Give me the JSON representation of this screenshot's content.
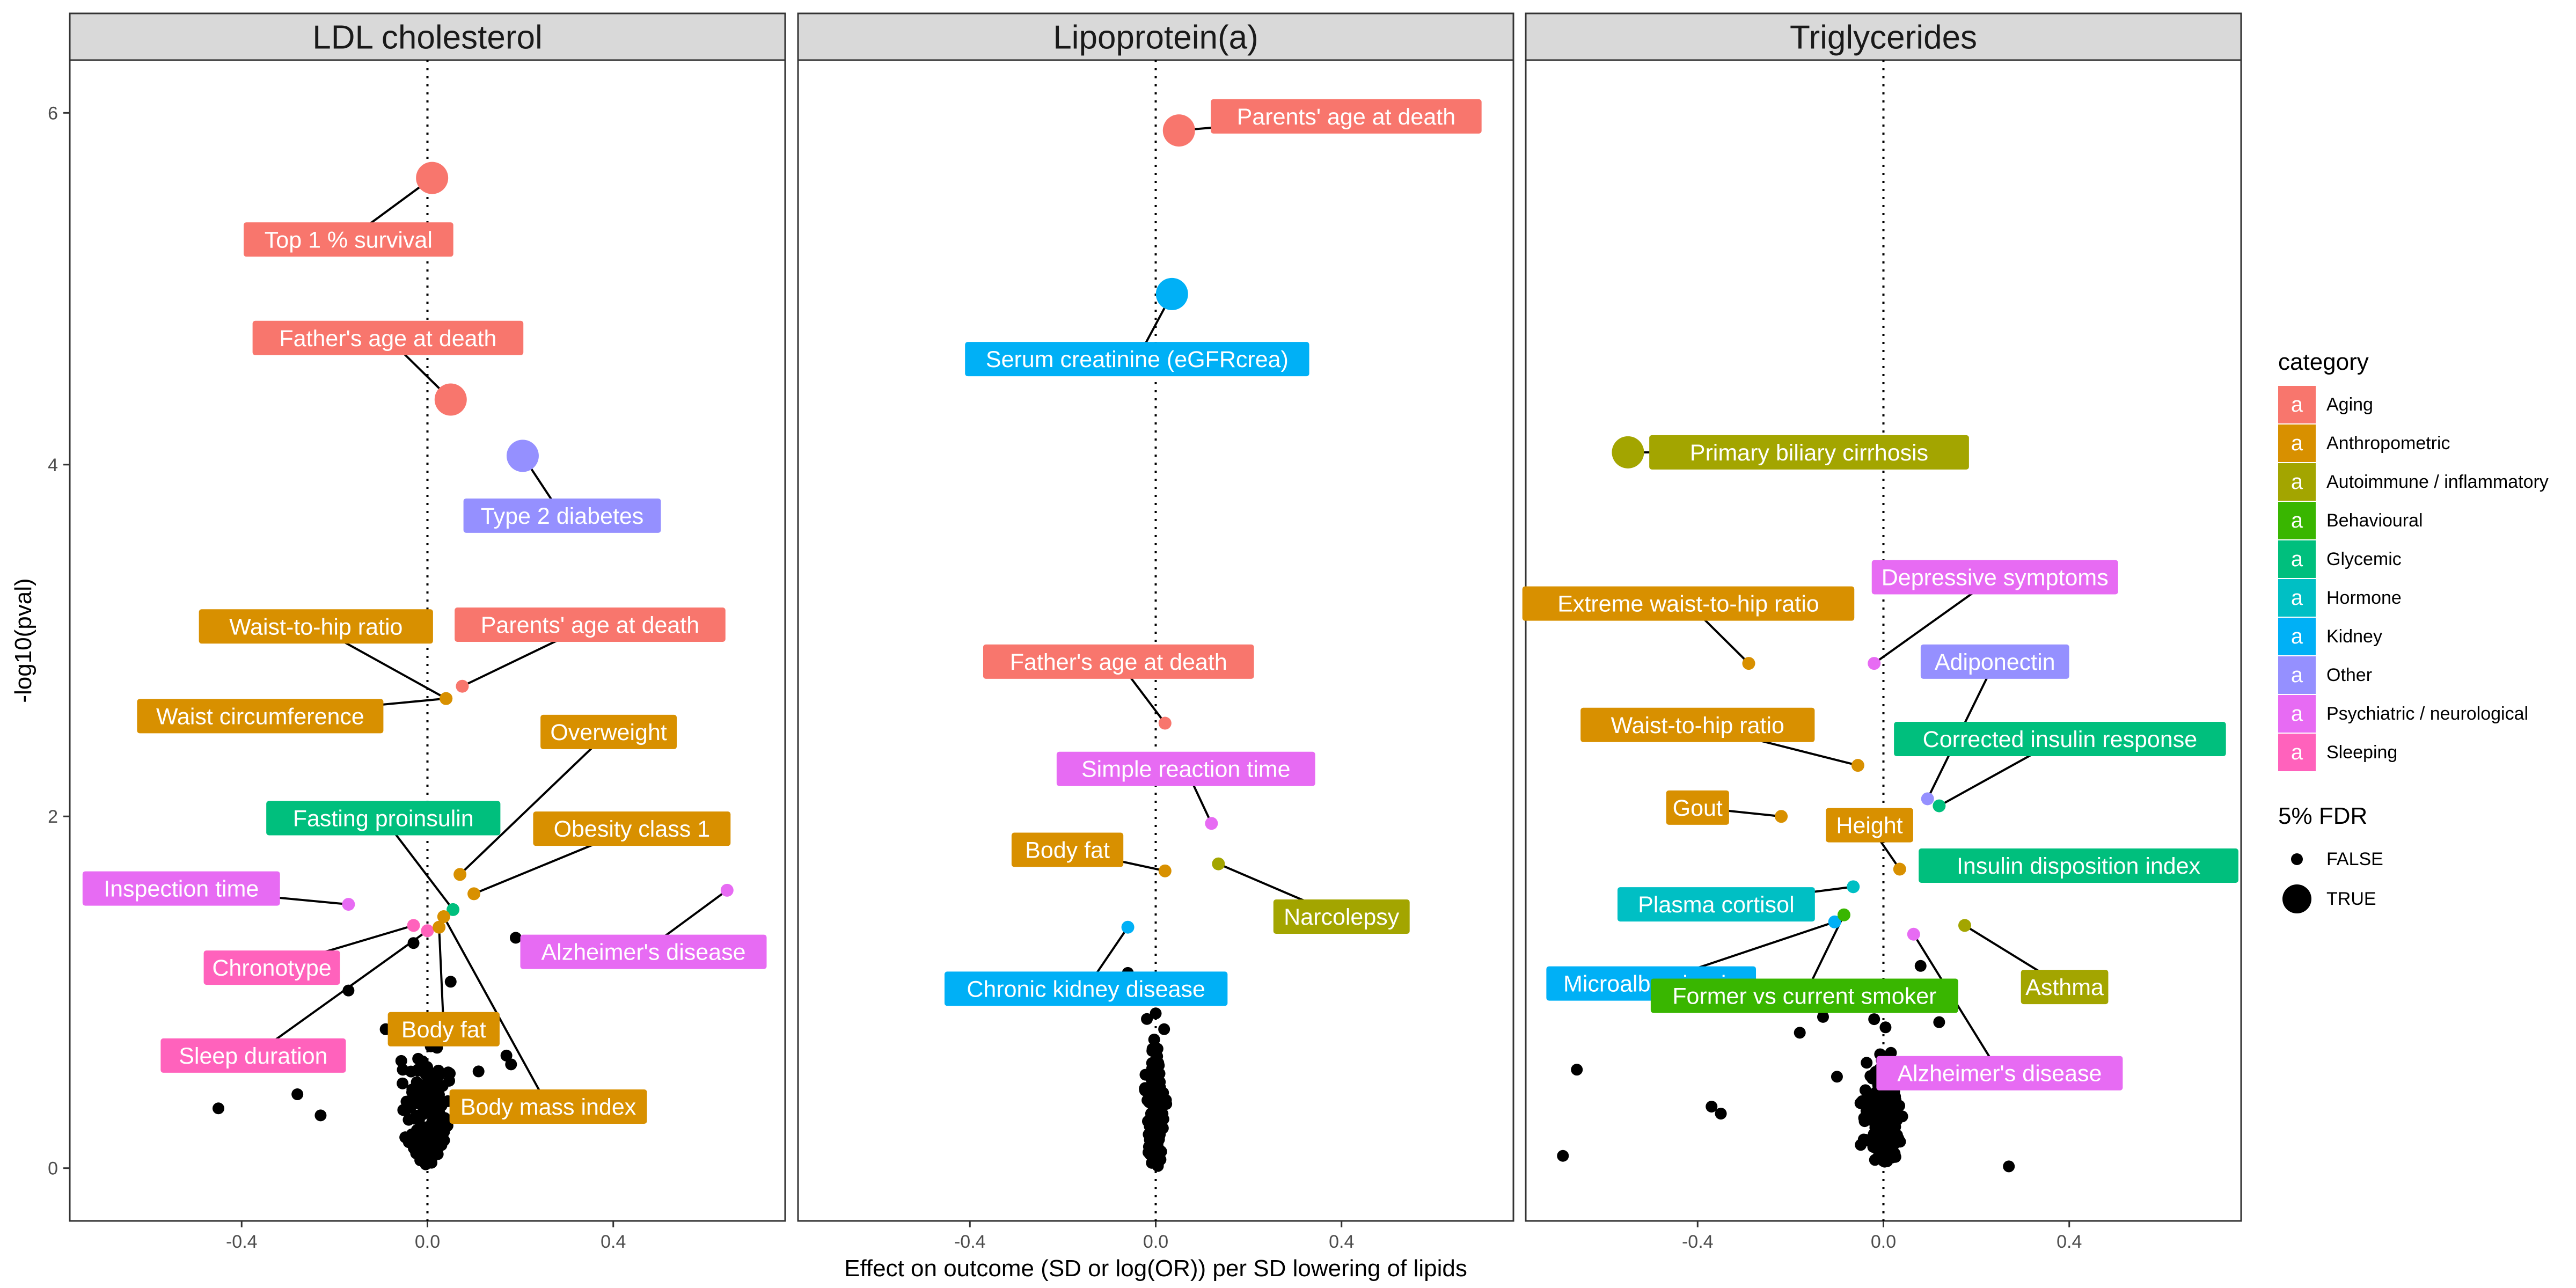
{
  "chart_data": {
    "type": "scatter",
    "xlabel": "Effect on outcome (SD or log(OR)) per SD lowering of lipids",
    "ylabel": "-log10(pval)",
    "xlim": [
      -0.77,
      0.77
    ],
    "ylim": [
      -0.3,
      6.3
    ],
    "xticks": [
      -0.4,
      0.0,
      0.4
    ],
    "xtick_labels": [
      "-0.4",
      "0.0",
      "0.4"
    ],
    "yticks": [
      0,
      2,
      4,
      6
    ],
    "ytick_labels": [
      "0",
      "2",
      "4",
      "6"
    ],
    "reference_line_x": 0,
    "grid": false,
    "legend_position": "right",
    "category_title": "category",
    "categories": [
      {
        "name": "Aging",
        "color": "#F8766D"
      },
      {
        "name": "Anthropometric",
        "color": "#D89000"
      },
      {
        "name": "Autoimmune / inflammatory",
        "color": "#A3A500"
      },
      {
        "name": "Behavioural",
        "color": "#39B600"
      },
      {
        "name": "Glycemic",
        "color": "#00BF7D"
      },
      {
        "name": "Hormone",
        "color": "#00BFC4"
      },
      {
        "name": "Kidney",
        "color": "#00B0F6"
      },
      {
        "name": "Other",
        "color": "#9590FF"
      },
      {
        "name": "Psychiatric / neurological",
        "color": "#E76BF3"
      },
      {
        "name": "Sleeping",
        "color": "#FF62BC"
      }
    ],
    "legend_key_glyph": "a",
    "fdr_title": "5% FDR",
    "fdr_levels": [
      "FALSE",
      "TRUE"
    ],
    "facets": [
      {
        "title": "LDL cholesterol",
        "labeled_points": [
          {
            "label": "Top 1 % survival",
            "category": "Aging",
            "x": 0.01,
            "y": 5.63,
            "fdr": true,
            "lx": -0.17,
            "ly": 5.28
          },
          {
            "label": "Father's age at death",
            "category": "Aging",
            "x": 0.05,
            "y": 4.37,
            "fdr": true,
            "lx": -0.085,
            "ly": 4.72
          },
          {
            "label": "Type 2 diabetes",
            "category": "Other",
            "x": 0.205,
            "y": 4.05,
            "fdr": true,
            "lx": 0.29,
            "ly": 3.71
          },
          {
            "label": "Waist-to-hip ratio",
            "category": "Anthropometric",
            "x": 0.04,
            "y": 2.67,
            "fdr": false,
            "lx": -0.24,
            "ly": 3.08
          },
          {
            "label": "Parents' age at death",
            "category": "Aging",
            "x": 0.075,
            "y": 2.74,
            "fdr": false,
            "lx": 0.35,
            "ly": 3.09
          },
          {
            "label": "Waist circumference",
            "category": "Anthropometric",
            "x": 0.04,
            "y": 2.67,
            "fdr": false,
            "lx": -0.36,
            "ly": 2.57
          },
          {
            "label": "Overweight",
            "category": "Anthropometric",
            "x": 0.07,
            "y": 1.67,
            "fdr": false,
            "lx": 0.39,
            "ly": 2.48
          },
          {
            "label": "Fasting proinsulin",
            "category": "Glycemic",
            "x": 0.055,
            "y": 1.47,
            "fdr": false,
            "lx": -0.095,
            "ly": 1.99
          },
          {
            "label": "Obesity class 1",
            "category": "Anthropometric",
            "x": 0.1,
            "y": 1.56,
            "fdr": false,
            "lx": 0.44,
            "ly": 1.93
          },
          {
            "label": "Inspection time",
            "category": "Psychiatric / neurological",
            "x": -0.17,
            "y": 1.5,
            "fdr": false,
            "lx": -0.53,
            "ly": 1.59
          },
          {
            "label": "Alzheimer's disease",
            "category": "Psychiatric / neurological",
            "x": 0.645,
            "y": 1.58,
            "fdr": false,
            "lx": 0.465,
            "ly": 1.23
          },
          {
            "label": "Chronotype",
            "category": "Sleeping",
            "x": -0.03,
            "y": 1.38,
            "fdr": false,
            "lx": -0.335,
            "ly": 1.14
          },
          {
            "label": "Sleep duration",
            "category": "Sleeping",
            "x": 0.0,
            "y": 1.35,
            "fdr": false,
            "lx": -0.375,
            "ly": 0.64
          },
          {
            "label": "Body fat",
            "category": "Anthropometric",
            "x": 0.025,
            "y": 1.37,
            "fdr": false,
            "lx": 0.035,
            "ly": 0.79
          },
          {
            "label": "Body mass index",
            "category": "Anthropometric",
            "x": 0.035,
            "y": 1.43,
            "fdr": false,
            "lx": 0.26,
            "ly": 0.35
          }
        ]
      },
      {
        "title": "Lipoprotein(a)",
        "labeled_points": [
          {
            "label": "Parents' age at death",
            "category": "Aging",
            "x": 0.05,
            "y": 5.9,
            "fdr": true,
            "lx": 0.41,
            "ly": 5.98
          },
          {
            "label": "Serum creatinine (eGFRcrea)",
            "category": "Kidney",
            "x": 0.035,
            "y": 4.97,
            "fdr": true,
            "lx": -0.04,
            "ly": 4.6
          },
          {
            "label": "Father's age at death",
            "category": "Aging",
            "x": 0.02,
            "y": 2.53,
            "fdr": false,
            "lx": -0.08,
            "ly": 2.88
          },
          {
            "label": "Simple reaction time",
            "category": "Psychiatric / neurological",
            "x": 0.12,
            "y": 1.96,
            "fdr": false,
            "lx": 0.065,
            "ly": 2.27
          },
          {
            "label": "Body fat",
            "category": "Anthropometric",
            "x": 0.02,
            "y": 1.69,
            "fdr": false,
            "lx": -0.19,
            "ly": 1.81
          },
          {
            "label": "Narcolepsy",
            "category": "Autoimmune / inflammatory",
            "x": 0.135,
            "y": 1.73,
            "fdr": false,
            "lx": 0.4,
            "ly": 1.43
          },
          {
            "label": "Chronic kidney disease",
            "category": "Kidney",
            "x": -0.06,
            "y": 1.37,
            "fdr": false,
            "lx": -0.15,
            "ly": 1.02
          }
        ]
      },
      {
        "title": "Triglycerides",
        "labeled_points": [
          {
            "label": "Primary biliary cirrhosis",
            "category": "Autoimmune / inflammatory",
            "x": -0.55,
            "y": 4.07,
            "fdr": true,
            "lx": -0.16,
            "ly": 4.07
          },
          {
            "label": "Depressive symptoms",
            "category": "Psychiatric / neurological",
            "x": -0.02,
            "y": 2.87,
            "fdr": false,
            "lx": 0.24,
            "ly": 3.36
          },
          {
            "label": "Extreme waist-to-hip ratio",
            "category": "Anthropometric",
            "x": -0.29,
            "y": 2.87,
            "fdr": false,
            "lx": -0.42,
            "ly": 3.21
          },
          {
            "label": "Adiponectin",
            "category": "Other",
            "x": 0.095,
            "y": 2.1,
            "fdr": false,
            "lx": 0.24,
            "ly": 2.88
          },
          {
            "label": "Waist-to-hip ratio",
            "category": "Anthropometric",
            "x": -0.055,
            "y": 2.29,
            "fdr": false,
            "lx": -0.4,
            "ly": 2.52
          },
          {
            "label": "Corrected insulin response",
            "category": "Glycemic",
            "x": 0.12,
            "y": 2.06,
            "fdr": false,
            "lx": 0.38,
            "ly": 2.44
          },
          {
            "label": "Gout",
            "category": "Anthropometric",
            "x": -0.22,
            "y": 2.0,
            "fdr": false,
            "lx": -0.4,
            "ly": 2.05
          },
          {
            "label": "Height",
            "category": "Anthropometric",
            "x": 0.035,
            "y": 1.7,
            "fdr": false,
            "lx": -0.03,
            "ly": 1.95
          },
          {
            "label": "Insulin disposition index",
            "category": "Glycemic",
            "x": 0.115,
            "y": 1.68,
            "fdr": false,
            "lx": 0.42,
            "ly": 1.72
          },
          {
            "label": "Plasma cortisol",
            "category": "Hormone",
            "x": -0.065,
            "y": 1.6,
            "fdr": false,
            "lx": -0.36,
            "ly": 1.5
          },
          {
            "label": "Asthma",
            "category": "Autoimmune / inflammatory",
            "x": 0.175,
            "y": 1.38,
            "fdr": false,
            "lx": 0.39,
            "ly": 1.03
          },
          {
            "label": "Microalbuminuria",
            "category": "Kidney",
            "x": -0.105,
            "y": 1.4,
            "fdr": false,
            "lx": -0.5,
            "ly": 1.05
          },
          {
            "label": "Former vs current smoker",
            "category": "Behavioural",
            "x": -0.085,
            "y": 1.44,
            "fdr": false,
            "lx": -0.17,
            "ly": 0.98
          },
          {
            "label": "Alzheimer's disease",
            "category": "Psychiatric / neurological",
            "x": 0.065,
            "y": 1.33,
            "fdr": false,
            "lx": 0.25,
            "ly": 0.54
          }
        ]
      }
    ]
  }
}
